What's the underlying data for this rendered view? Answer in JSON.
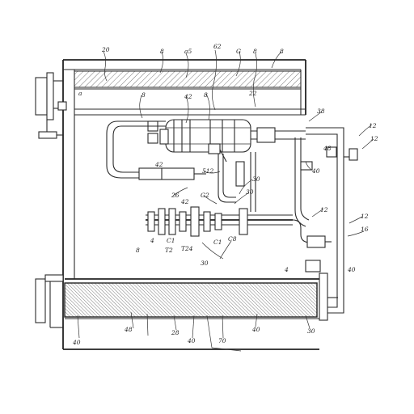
{
  "diagram": {
    "ref_labels": {
      "top": [
        "20",
        "8",
        "a5",
        "62",
        "G",
        "8",
        "8"
      ],
      "upper": [
        "a",
        "8",
        "22",
        "42",
        "8",
        "38",
        "12",
        "12",
        "48"
      ],
      "right": [
        "40",
        "12",
        "12",
        "16",
        "40",
        "4"
      ],
      "middle": [
        "512",
        "42",
        "30",
        "42",
        "30",
        "G2",
        "26"
      ],
      "pump": [
        "8",
        "4",
        "C1",
        "T2",
        "T24",
        "30",
        "C1",
        "C8"
      ],
      "bottom": [
        "40",
        "48",
        "28",
        "40",
        "70",
        "40",
        "30"
      ]
    },
    "stroke_color": "#2a2a2a",
    "hatch_color": "#555555"
  }
}
